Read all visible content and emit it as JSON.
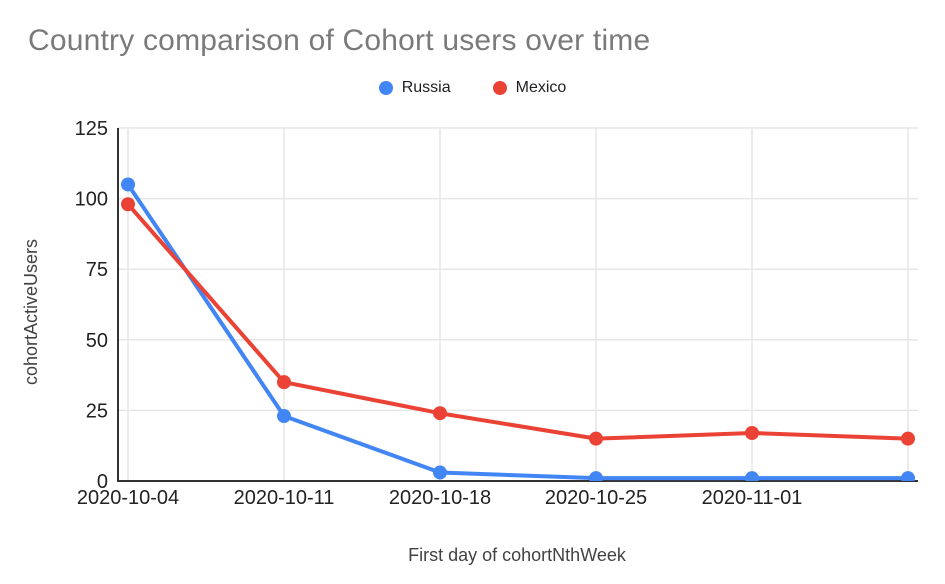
{
  "chart_data": {
    "type": "line",
    "title": "Country comparison of Cohort users over time",
    "xlabel": "First day of cohortNthWeek",
    "ylabel": "cohortActiveUsers",
    "categories": [
      "2020-10-04",
      "2020-10-11",
      "2020-10-18",
      "2020-10-25",
      "2020-11-01",
      ""
    ],
    "series": [
      {
        "name": "Russia",
        "color": "#4285F4",
        "values": [
          105,
          23,
          3,
          1,
          1,
          1
        ]
      },
      {
        "name": "Mexico",
        "color": "#EA4335",
        "values": [
          98,
          35,
          24,
          15,
          17,
          15
        ]
      }
    ],
    "ylim": [
      0,
      125
    ],
    "yticks": [
      0,
      25,
      50,
      75,
      100,
      125
    ],
    "grid": true,
    "legend_position": "top-center"
  },
  "style_colors": {
    "background": "#ffffff",
    "title_text": "#7a7a7a",
    "tick_label": "#222222",
    "axis_title": "#424242",
    "legend_text": "#202124",
    "gridline": "#e6e6e6",
    "axis_line": "#333333"
  }
}
